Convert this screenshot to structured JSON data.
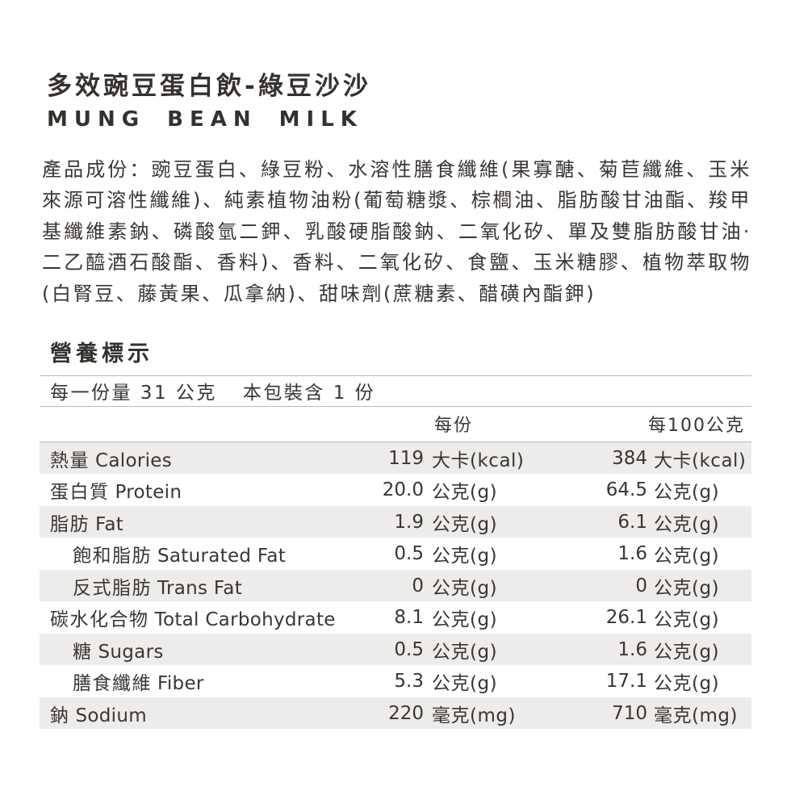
{
  "product": {
    "title_zh": "多效豌豆蛋白飲-綠豆沙沙",
    "title_en": "MUNG BEAN MILK"
  },
  "ingredients": {
    "text": "產品成份：豌豆蛋白、綠豆粉、水溶性膳食纖維(果寡醣、菊苣纖維、玉米來源可溶性纖維)、純素植物油粉(葡萄糖漿、棕櫚油、脂肪酸甘油酯、羧甲基纖維素鈉、磷酸氫二鉀、乳酸硬脂酸鈉、二氧化矽、單及雙脂肪酸甘油·二乙醯酒石酸酯、香料)、香料、二氧化矽、食鹽、玉米糖膠、植物萃取物(白腎豆、藤黃果、瓜拿納)、甜味劑(蔗糖素、醋磺內酯鉀)"
  },
  "nutrition": {
    "section_title": "營養標示",
    "serving_size": "每一份量 31 公克",
    "servings_per_package": "本包裝含 1 份",
    "columns": {
      "per_serving": "每份",
      "per_100g": "每100公克"
    },
    "rows": [
      {
        "zh": "熱量",
        "en": "Calories",
        "indent": false,
        "v1": "119",
        "u1": "大卡(kcal)",
        "v2": "384",
        "u2": "大卡(kcal)"
      },
      {
        "zh": "蛋白質",
        "en": "Protein",
        "indent": false,
        "v1": "20.0",
        "u1": "公克(g)",
        "v2": "64.5",
        "u2": "公克(g)"
      },
      {
        "zh": "脂肪",
        "en": "Fat",
        "indent": false,
        "v1": "1.9",
        "u1": "公克(g)",
        "v2": "6.1",
        "u2": "公克(g)"
      },
      {
        "zh": "飽和脂肪",
        "en": "Saturated Fat",
        "indent": true,
        "v1": "0.5",
        "u1": "公克(g)",
        "v2": "1.6",
        "u2": "公克(g)"
      },
      {
        "zh": "反式脂肪",
        "en": "Trans Fat",
        "indent": true,
        "v1": "0",
        "u1": "公克(g)",
        "v2": "0",
        "u2": "公克(g)"
      },
      {
        "zh": "碳水化合物",
        "en": "Total Carbohydrate",
        "indent": false,
        "v1": "8.1",
        "u1": "公克(g)",
        "v2": "26.1",
        "u2": "公克(g)"
      },
      {
        "zh": "糖",
        "en": "Sugars",
        "indent": true,
        "v1": "0.5",
        "u1": "公克(g)",
        "v2": "1.6",
        "u2": "公克(g)"
      },
      {
        "zh": "膳食纖維",
        "en": "Fiber",
        "indent": true,
        "v1": "5.3",
        "u1": "公克(g)",
        "v2": "17.1",
        "u2": "公克(g)"
      },
      {
        "zh": "鈉",
        "en": "Sodium",
        "indent": false,
        "v1": "220",
        "u1": "毫克(mg)",
        "v2": "710",
        "u2": "毫克(mg)"
      }
    ]
  },
  "colors": {
    "text": "#3a3633",
    "stripe": "#edecea",
    "rule": "#bdbbb8",
    "background": "#ffffff"
  }
}
